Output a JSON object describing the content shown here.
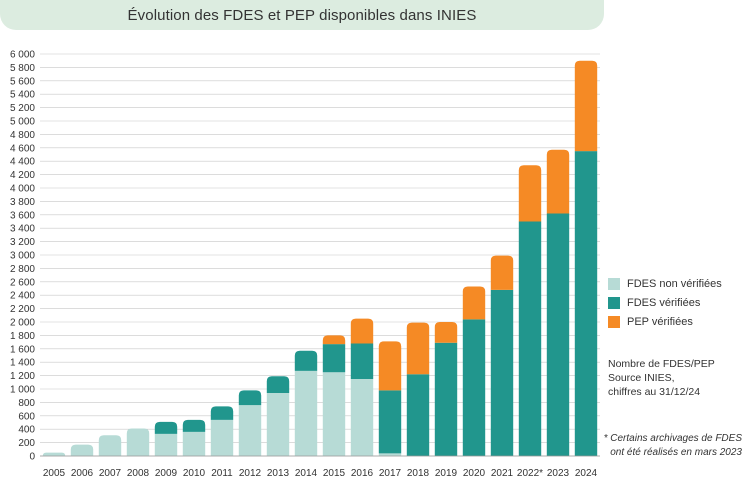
{
  "chart_data": {
    "type": "bar",
    "stacked": true,
    "title": "Évolution des FDES et PEP disponibles dans INIES",
    "categories": [
      "2005",
      "2006",
      "2007",
      "2008",
      "2009",
      "2010",
      "2011",
      "2012",
      "2013",
      "2014",
      "2015",
      "2016",
      "2017",
      "2018",
      "2019",
      "2020",
      "2021",
      "2022*",
      "2023",
      "2024"
    ],
    "series": [
      {
        "name": "FDES non vérifiées",
        "color": "#b7dbd6",
        "values": [
          50,
          170,
          310,
          410,
          330,
          360,
          540,
          760,
          940,
          1270,
          1250,
          1150,
          40,
          0,
          0,
          0,
          0,
          0,
          0,
          0
        ]
      },
      {
        "name": "FDES vérifiées",
        "color": "#21968d",
        "values": [
          0,
          0,
          0,
          0,
          180,
          180,
          200,
          220,
          250,
          300,
          420,
          530,
          940,
          1220,
          1690,
          2040,
          2480,
          3500,
          3620,
          4550
        ]
      },
      {
        "name": "PEP vérifiées",
        "color": "#f58a25",
        "values": [
          0,
          0,
          0,
          0,
          0,
          0,
          0,
          0,
          0,
          0,
          130,
          370,
          730,
          770,
          310,
          490,
          510,
          840,
          950,
          1350
        ]
      }
    ],
    "ylim": [
      0,
      6000
    ],
    "yticks": [
      "0",
      "200",
      "400",
      "600",
      "800",
      "1 000",
      "1 200",
      "1 400",
      "1 600",
      "1 800",
      "2 000",
      "2 200",
      "2 400",
      "2 600",
      "2 800",
      "3 000",
      "3 200",
      "3 400",
      "3 600",
      "3 800",
      "4 000",
      "4 200",
      "4 400",
      "4 600",
      "4 800",
      "5 000",
      "5 200",
      "5 400",
      "5 600",
      "5 800",
      "6 000"
    ],
    "grid": true,
    "legend_position": "right"
  },
  "source_lines": [
    "Nombre de FDES/PEP",
    "Source INIES,",
    "chiffres au 31/12/24"
  ],
  "note_lines": [
    "* Certains archivages de FDES",
    "ont été réalisés en mars 2023"
  ]
}
